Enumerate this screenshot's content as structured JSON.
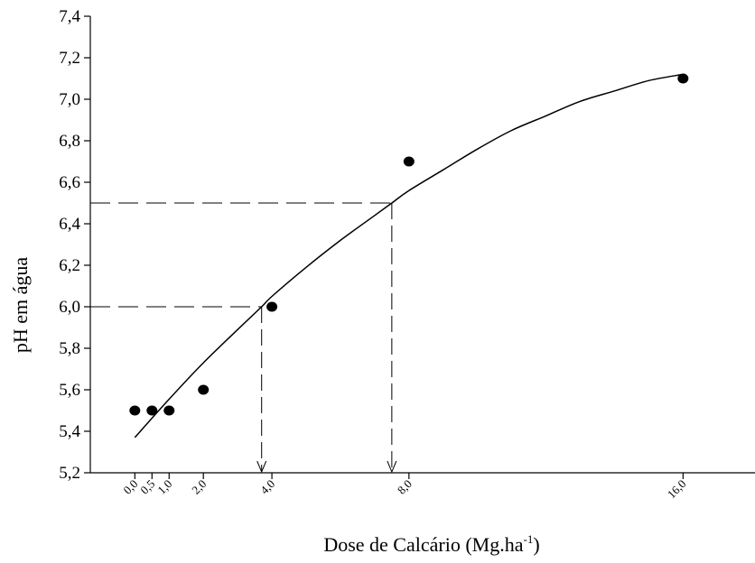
{
  "chart_data": {
    "type": "scatter",
    "xlabel": "Dose de Calcário (Mg.ha",
    "xlabel_sup": "-1",
    "xlabel_close": ")",
    "ylabel": "pH em água",
    "ylim": [
      5.2,
      7.4
    ],
    "xlim": [
      -1.3,
      18.1
    ],
    "grid": false,
    "yticks": [
      5.2,
      5.4,
      5.6,
      5.8,
      6.0,
      6.2,
      6.4,
      6.6,
      6.8,
      7.0,
      7.2,
      7.4
    ],
    "ytick_labels": [
      "5,2",
      "5,4",
      "5,6",
      "5,8",
      "6,0",
      "6,2",
      "6,4",
      "6,6",
      "6,8",
      "7,0",
      "7,2",
      "7,4"
    ],
    "xticks": [
      0.0,
      0.5,
      1.0,
      2.0,
      4.0,
      8.0,
      16.0
    ],
    "xtick_labels": [
      "0,0",
      "0,5",
      "1,0",
      "2,0",
      "4,0",
      "8,0",
      "16,0"
    ],
    "points": [
      {
        "x": 0.0,
        "y": 5.5
      },
      {
        "x": 0.5,
        "y": 5.5
      },
      {
        "x": 1.0,
        "y": 5.5
      },
      {
        "x": 2.0,
        "y": 5.6
      },
      {
        "x": 4.0,
        "y": 6.0
      },
      {
        "x": 8.0,
        "y": 6.7
      },
      {
        "x": 16.0,
        "y": 7.1
      }
    ],
    "fit_curve": {
      "x": [
        0,
        1,
        2,
        3,
        3.7,
        4,
        5,
        6,
        7,
        7.5,
        8,
        9,
        10,
        11,
        12,
        13,
        14,
        15,
        16
      ],
      "y": [
        5.37,
        5.555,
        5.73,
        5.89,
        6.0,
        6.05,
        6.19,
        6.32,
        6.44,
        6.5,
        6.56,
        6.66,
        6.76,
        6.85,
        6.92,
        6.99,
        7.04,
        7.09,
        7.12
      ]
    },
    "reference_lines": [
      {
        "y": 6.0,
        "x": 3.7
      },
      {
        "y": 6.5,
        "x": 7.5
      }
    ]
  }
}
